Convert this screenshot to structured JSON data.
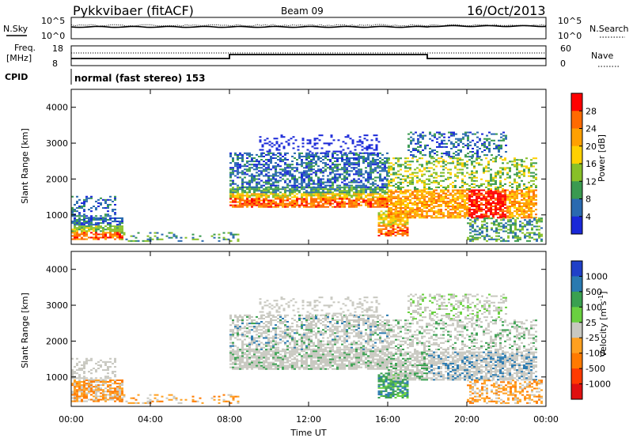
{
  "header": {
    "title": "Pykkvibaer (fitACF)",
    "beam": "Beam 09",
    "date": "16/Oct/2013"
  },
  "param_panels": {
    "nsky_label": "N.Sky",
    "nsky_ticks": [
      "10^5",
      "10^0"
    ],
    "nsearch_label": "N.Search",
    "nsearch_ticks": [
      "10^5",
      "10^0"
    ],
    "freq_label_1": "Freq.",
    "freq_label_2": "[MHz]",
    "freq_ticks": [
      "18",
      "8"
    ],
    "nave_label": "Nave",
    "nave_ticks": [
      "60",
      "0"
    ],
    "cpid_label": "CPID",
    "cpid_text": "normal (fast stereo) 153"
  },
  "chart_data": [
    {
      "type": "heatmap",
      "title": "",
      "ylabel": "Slant Range [km]",
      "xlabel": "",
      "ylim": [
        180,
        4500
      ],
      "y_ticks": [
        "4000",
        "3000",
        "2000",
        "1000"
      ],
      "colorbar_label": "Power [dB]",
      "colorbar_ticks": [
        "28",
        "24",
        "20",
        "16",
        "12",
        "8",
        "4"
      ],
      "colorbar_colors": [
        "#ff0000",
        "#ff6a00",
        "#ffa000",
        "#ffd000",
        "#88c028",
        "#3a9a50",
        "#2a6ab0",
        "#1a28d8"
      ],
      "features": [
        {
          "x_start": 0.0,
          "x_end": 2.5,
          "y_low": 300,
          "y_high": 1500,
          "level": "mixed"
        },
        {
          "x_start": 8.0,
          "x_end": 16.0,
          "y_low": 1150,
          "y_high": 3200,
          "level": "strong band near 1300-1700 km"
        },
        {
          "x_start": 15.5,
          "x_end": 23.5,
          "y_low": 300,
          "y_high": 3300,
          "level": "strong near 1000-1600 km"
        }
      ]
    },
    {
      "type": "heatmap",
      "title": "",
      "ylabel": "Slant Range [km]",
      "xlabel": "Time UT",
      "ylim": [
        180,
        4500
      ],
      "y_ticks": [
        "4000",
        "3000",
        "2000",
        "1000"
      ],
      "x_ticks": [
        "00:00",
        "04:00",
        "08:00",
        "12:00",
        "16:00",
        "20:00",
        "00:00"
      ],
      "x_range_hours": [
        0,
        24
      ],
      "colorbar_label": "Velocity [m s-1]",
      "colorbar_label_main": "Velocity [m s",
      "colorbar_label_sup": "-1",
      "colorbar_label_end": "]",
      "colorbar_ticks": [
        "1000",
        "500",
        "100",
        "25",
        "-25",
        "-100",
        "-500",
        "-1000"
      ],
      "colorbar_colors": [
        "#2040c8",
        "#2a7ab0",
        "#3aa050",
        "#6ad040",
        "#c8c8c0",
        "#ffa020",
        "#ff7a00",
        "#ff3a00",
        "#e01010"
      ],
      "features": [
        {
          "x_start": 0.0,
          "x_end": 2.5,
          "y_low": 300,
          "y_high": 1100,
          "level": "grey/orange"
        },
        {
          "x_start": 8.0,
          "x_end": 16.0,
          "y_low": 1150,
          "y_high": 3200,
          "level": "mostly grey low velocity"
        },
        {
          "x_start": 15.5,
          "x_end": 23.5,
          "y_low": 300,
          "y_high": 3300,
          "level": "grey with green/blue"
        }
      ]
    }
  ]
}
